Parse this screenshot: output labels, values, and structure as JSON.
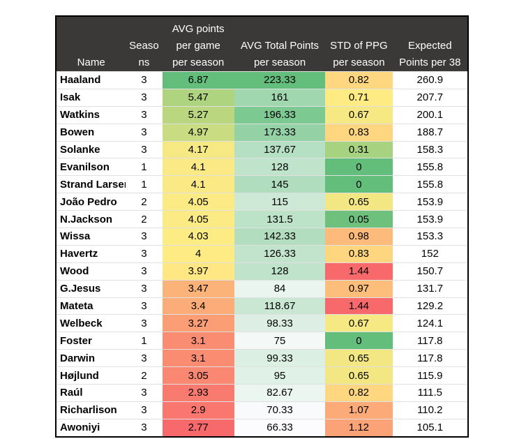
{
  "chart_data": {
    "type": "table",
    "columns": [
      "Name",
      "Seasons",
      "AVG points per game per season",
      "AVG Total Points per season",
      "STD  of PPG per season",
      "Expected Points per 38"
    ],
    "column_header_display": [
      "Name",
      "Seaso\nns",
      "AVG points\nper game\nper season",
      "AVG Total Points\nper season",
      "STD  of PPG\nper season",
      "Expected\nPoints per 38"
    ],
    "rows": [
      [
        "Haaland",
        "3",
        "6.87",
        "223.33",
        "0.82",
        "260.9"
      ],
      [
        "Isak",
        "3",
        "5.47",
        "161",
        "0.71",
        "207.7"
      ],
      [
        "Watkins",
        "3",
        "5.27",
        "196.33",
        "0.67",
        "200.1"
      ],
      [
        "Bowen",
        "3",
        "4.97",
        "173.33",
        "0.83",
        "188.7"
      ],
      [
        "Solanke",
        "3",
        "4.17",
        "137.67",
        "0.31",
        "158.3"
      ],
      [
        "Evanilson",
        "1",
        "4.1",
        "128",
        "0",
        "155.8"
      ],
      [
        "Strand Larser",
        "1",
        "4.1",
        "145",
        "0",
        "155.8"
      ],
      [
        "João Pedro",
        "2",
        "4.05",
        "115",
        "0.65",
        "153.9"
      ],
      [
        "N.Jackson",
        "2",
        "4.05",
        "131.5",
        "0.05",
        "153.9"
      ],
      [
        "Wissa",
        "3",
        "4.03",
        "142.33",
        "0.98",
        "153.3"
      ],
      [
        "Havertz",
        "3",
        "4",
        "126.33",
        "0.83",
        "152"
      ],
      [
        "Wood",
        "3",
        "3.97",
        "128",
        "1.44",
        "150.7"
      ],
      [
        "G.Jesus",
        "3",
        "3.47",
        "84",
        "0.97",
        "131.7"
      ],
      [
        "Mateta",
        "3",
        "3.4",
        "118.67",
        "1.44",
        "129.2"
      ],
      [
        "Welbeck",
        "3",
        "3.27",
        "98.33",
        "0.67",
        "124.1"
      ],
      [
        "Foster",
        "1",
        "3.1",
        "75",
        "0",
        "117.8"
      ],
      [
        "Darwin",
        "3",
        "3.1",
        "99.33",
        "0.65",
        "117.8"
      ],
      [
        "Højlund",
        "2",
        "3.05",
        "95",
        "0.65",
        "115.9"
      ],
      [
        "Raúl",
        "3",
        "2.93",
        "82.67",
        "0.82",
        "111.5"
      ],
      [
        "Richarlison",
        "3",
        "2.9",
        "70.33",
        "1.07",
        "110.2"
      ],
      [
        "Awoniyi",
        "3",
        "2.77",
        "66.33",
        "1.12",
        "105.1"
      ]
    ],
    "color_scales": {
      "avg_ppg": {
        "min_color": "#f8696b",
        "mid_color": "#ffeb84",
        "max_color": "#63be7b"
      },
      "avg_total": {
        "min_color": "#fcfcff",
        "max_color": "#63be7b"
      },
      "std_ppg": {
        "min_color": "#63be7b",
        "mid_color": "#ffeb84",
        "max_color": "#f8696b"
      }
    },
    "header_background": "#3b3838",
    "header_text_color": "#ffffff"
  }
}
